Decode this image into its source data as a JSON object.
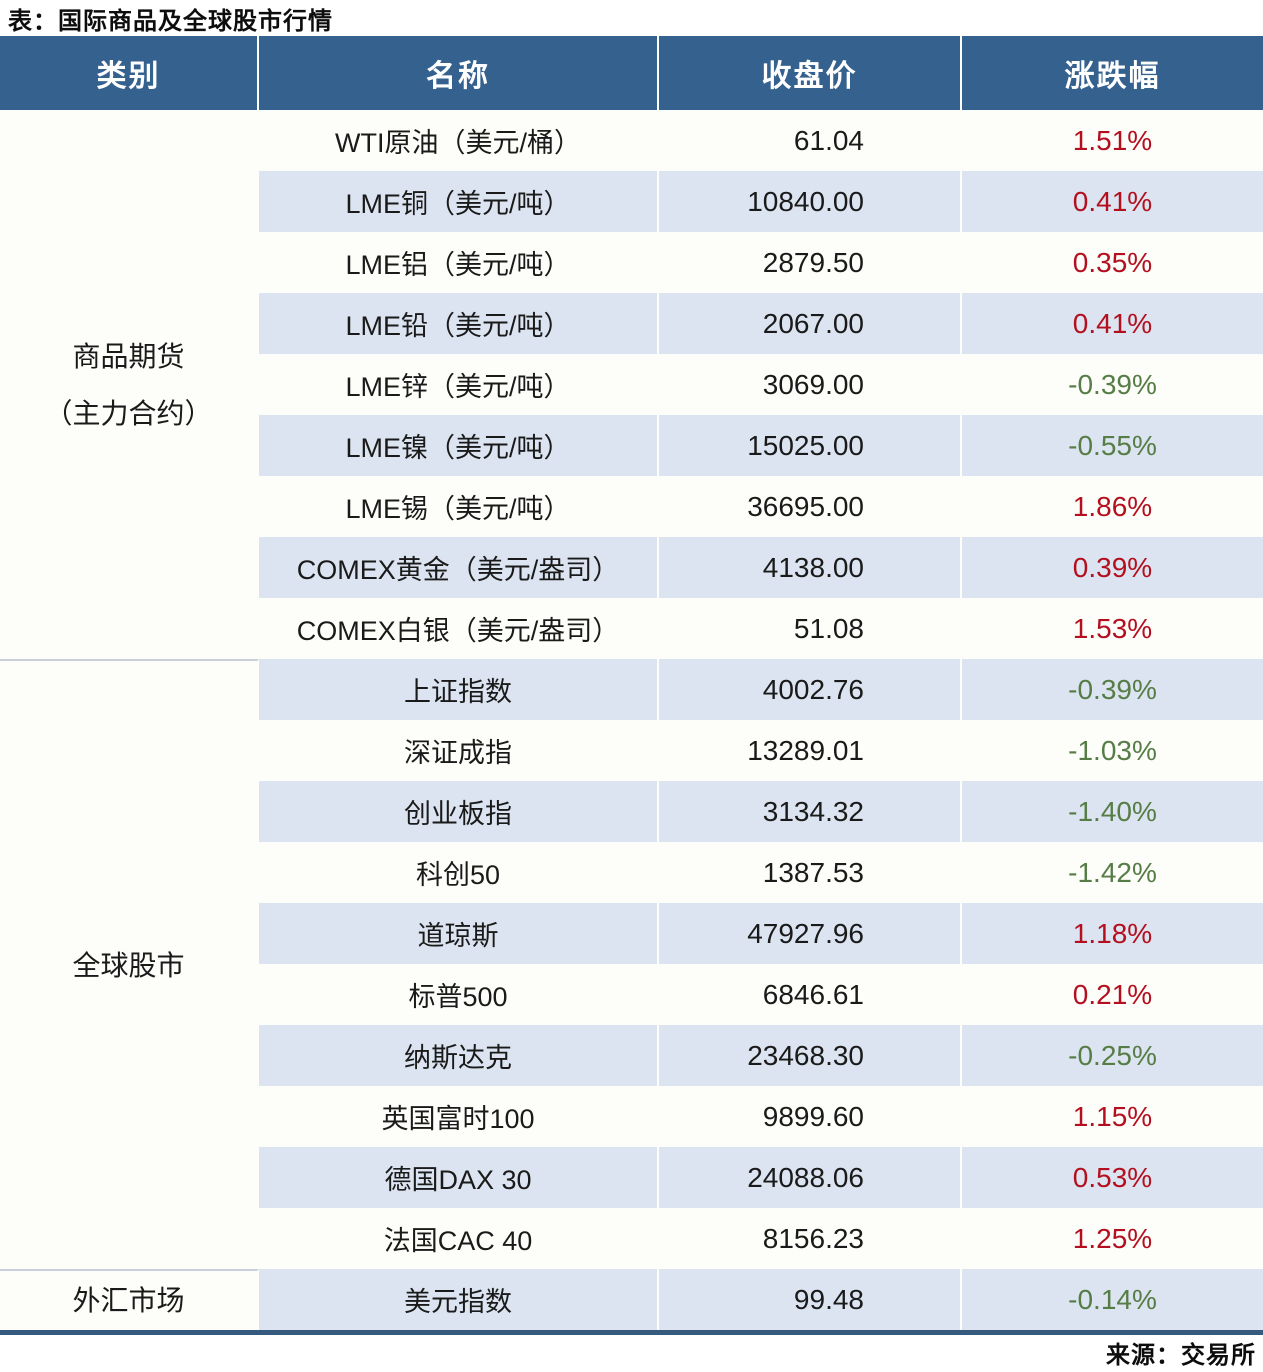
{
  "title": "表：国际商品及全球股市行情",
  "source": "来源：交易所",
  "colors": {
    "header_bg": "#35618e",
    "row_stripe": "#dbe4f0",
    "row_plain": "#fdfdfa",
    "positive_red": "#b40f1e",
    "negative_green": "#567d46",
    "bottom_rule_blue": "#365a7e",
    "section_divider_gray": "#c7d0da"
  },
  "chart_data": {
    "type": "table",
    "title": "表：国际商品及全球股市行情",
    "source": "来源：交易所",
    "columns": [
      "类别",
      "名称",
      "收盘价",
      "涨跌幅"
    ],
    "sections": [
      {
        "category_lines": [
          "商品期货",
          "（主力合约）"
        ],
        "rows": [
          {
            "name": "WTI原油（美元/桶）",
            "close": "61.04",
            "change": "1.51%"
          },
          {
            "name": "LME铜（美元/吨）",
            "close": "10840.00",
            "change": "0.41%"
          },
          {
            "name": "LME铝（美元/吨）",
            "close": "2879.50",
            "change": "0.35%"
          },
          {
            "name": "LME铅（美元/吨）",
            "close": "2067.00",
            "change": "0.41%"
          },
          {
            "name": "LME锌（美元/吨）",
            "close": "3069.00",
            "change": "-0.39%"
          },
          {
            "name": "LME镍（美元/吨）",
            "close": "15025.00",
            "change": "-0.55%"
          },
          {
            "name": "LME锡（美元/吨）",
            "close": "36695.00",
            "change": "1.86%"
          },
          {
            "name": "COMEX黄金（美元/盎司）",
            "close": "4138.00",
            "change": "0.39%"
          },
          {
            "name": "COMEX白银（美元/盎司）",
            "close": "51.08",
            "change": "1.53%"
          }
        ]
      },
      {
        "category_lines": [
          "全球股市"
        ],
        "rows": [
          {
            "name": "上证指数",
            "close": "4002.76",
            "change": "-0.39%"
          },
          {
            "name": "深证成指",
            "close": "13289.01",
            "change": "-1.03%"
          },
          {
            "name": "创业板指",
            "close": "3134.32",
            "change": "-1.40%"
          },
          {
            "name": "科创50",
            "close": "1387.53",
            "change": "-1.42%"
          },
          {
            "name": "道琼斯",
            "close": "47927.96",
            "change": "1.18%"
          },
          {
            "name": "标普500",
            "close": "6846.61",
            "change": "0.21%"
          },
          {
            "name": "纳斯达克",
            "close": "23468.30",
            "change": "-0.25%"
          },
          {
            "name": "英国富时100",
            "close": "9899.60",
            "change": "1.15%"
          },
          {
            "name": "德国DAX 30",
            "close": "24088.06",
            "change": "0.53%"
          },
          {
            "name": "法国CAC 40",
            "close": "8156.23",
            "change": "1.25%"
          }
        ]
      },
      {
        "category_lines": [
          "外汇市场"
        ],
        "rows": [
          {
            "name": "美元指数",
            "close": "99.48",
            "change": "-0.14%"
          }
        ]
      }
    ]
  }
}
